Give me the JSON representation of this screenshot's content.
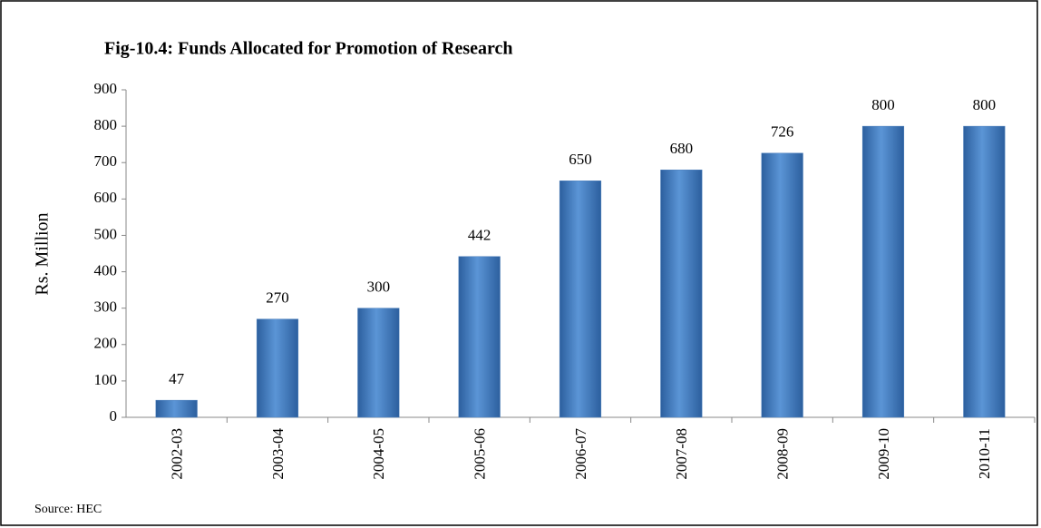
{
  "chart_data": {
    "type": "bar",
    "title": "Fig-10.4: Funds Allocated for Promotion of Research",
    "y_label": "Rs. Million",
    "source": "Source: HEC",
    "categories": [
      "2002-03",
      "2003-04",
      "2004-05",
      "2005-06",
      "2006-07",
      "2007-08",
      "2008-09",
      "2009-10",
      "2010-11"
    ],
    "values": [
      47,
      270,
      300,
      442,
      650,
      680,
      726,
      800,
      800
    ],
    "color": "#4f81bd",
    "ylim": [
      0,
      900
    ],
    "yticks": [
      0,
      100,
      200,
      300,
      400,
      500,
      600,
      700,
      800,
      900
    ],
    "grid": false
  }
}
